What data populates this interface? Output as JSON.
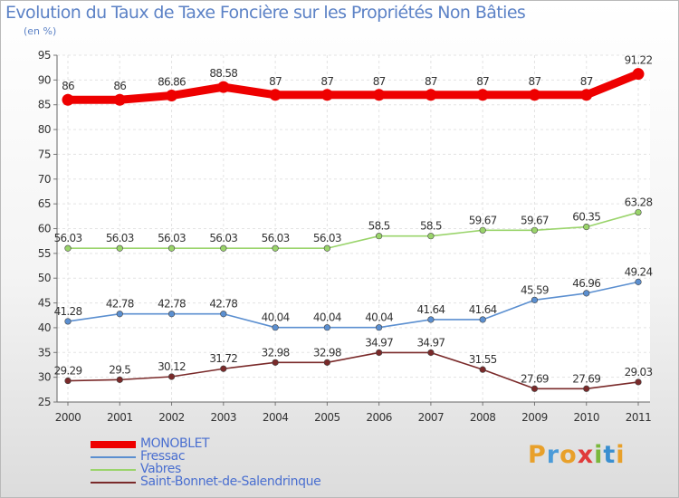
{
  "title": "Evolution du Taux de Taxe Foncière sur les Propriétés Non Bâties",
  "unit_label": "(en %)",
  "brand": "Proxiti",
  "chart_data": {
    "type": "line",
    "x": [
      "2000",
      "2001",
      "2002",
      "2003",
      "2004",
      "2005",
      "2006",
      "2007",
      "2008",
      "2009",
      "2010",
      "2011"
    ],
    "ylim": [
      25,
      95
    ],
    "yticks": [
      25,
      30,
      35,
      40,
      45,
      50,
      55,
      60,
      65,
      70,
      75,
      80,
      85,
      90,
      95
    ],
    "grid": true,
    "legend_position": "bottom-left",
    "series": [
      {
        "name": "MONOBLET",
        "color": "#ee0000",
        "values": [
          86,
          86,
          86.86,
          88.58,
          87,
          87,
          87,
          87,
          87,
          87,
          87,
          91.22
        ],
        "labels": [
          "86",
          "86",
          "86.86",
          "88.58",
          "87",
          "87",
          "87",
          "87",
          "87",
          "87",
          "87",
          "91.22"
        ]
      },
      {
        "name": "Fressac",
        "color": "#5b8fd0",
        "values": [
          41.28,
          42.78,
          42.78,
          42.78,
          40.04,
          40.04,
          40.04,
          41.64,
          41.64,
          45.59,
          46.96,
          49.24
        ],
        "labels": [
          "41.28",
          "42.78",
          "42.78",
          "42.78",
          "40.04",
          "40.04",
          "40.04",
          "41.64",
          "41.64",
          "45.59",
          "46.96",
          "49.24"
        ]
      },
      {
        "name": "Vabres",
        "color": "#9ad46b",
        "values": [
          56.03,
          56.03,
          56.03,
          56.03,
          56.03,
          56.03,
          58.5,
          58.5,
          59.67,
          59.67,
          60.35,
          63.28
        ],
        "labels": [
          "56.03",
          "56.03",
          "56.03",
          "56.03",
          "56.03",
          "56.03",
          "58.5",
          "58.5",
          "59.67",
          "59.67",
          "60.35",
          "63.28"
        ]
      },
      {
        "name": "Saint-Bonnet-de-Salendrinque",
        "color": "#7a2a2a",
        "values": [
          29.29,
          29.5,
          30.12,
          31.72,
          32.98,
          32.98,
          34.97,
          34.97,
          31.55,
          27.69,
          27.69,
          29.03
        ],
        "labels": [
          "29.29",
          "29.5",
          "30.12",
          "31.72",
          "32.98",
          "32.98",
          "34.97",
          "34.97",
          "31.55",
          "27.69",
          "27.69",
          "29.03"
        ]
      }
    ]
  }
}
